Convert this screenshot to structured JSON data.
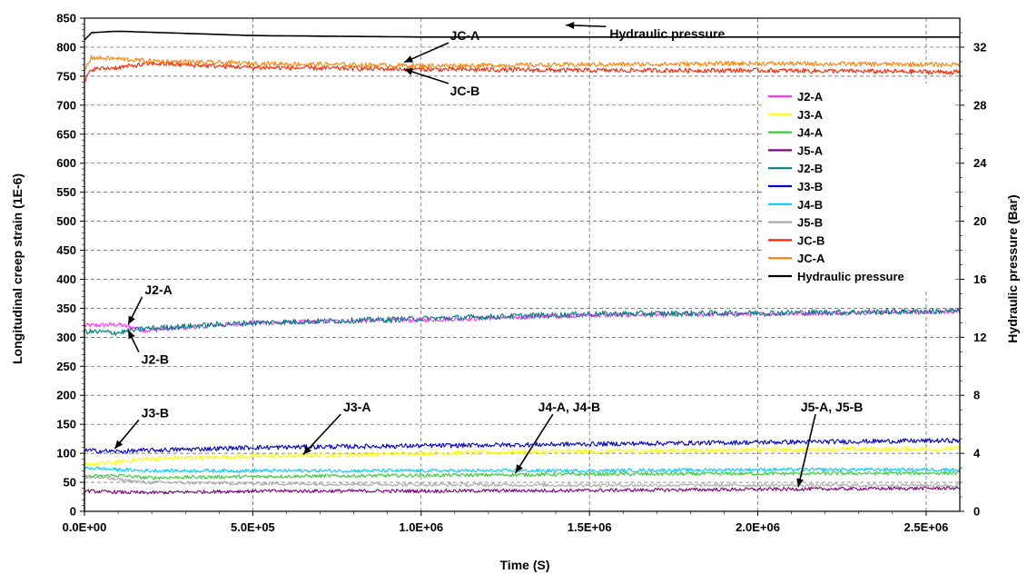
{
  "chart_data": {
    "type": "line",
    "xlabel": "Time (S)",
    "ylabel": "Longitudinal creep strain (1E-6)",
    "y2label": "Hydraulic pressure (Bar)",
    "xlim": [
      0,
      2600000
    ],
    "ylim": [
      0,
      850
    ],
    "y2lim": [
      0,
      34
    ],
    "x_ticks": [
      0,
      500000,
      1000000,
      1500000,
      2000000,
      2500000
    ],
    "x_tick_labels": [
      "0.0E+00",
      "5.0E+05",
      "1.0E+06",
      "1.5E+06",
      "2.0E+06",
      "2.5E+06"
    ],
    "y_ticks": [
      0,
      50,
      100,
      150,
      200,
      250,
      300,
      350,
      400,
      450,
      500,
      550,
      600,
      650,
      700,
      750,
      800,
      850
    ],
    "y2_ticks": [
      0,
      4,
      8,
      12,
      16,
      20,
      24,
      28,
      32
    ],
    "grid": true,
    "legend_position": "right",
    "series": [
      {
        "name": "J2-A",
        "color": "#ff33ff",
        "axis": "left",
        "noise": 4,
        "x": [
          0,
          100000,
          180000,
          500000,
          1000000,
          1500000,
          2000000,
          2600000
        ],
        "y": [
          320,
          322,
          312,
          325,
          330,
          338,
          340,
          345
        ]
      },
      {
        "name": "J3-A",
        "color": "#ffff00",
        "axis": "left",
        "noise": 4,
        "x": [
          0,
          100000,
          180000,
          500000,
          1000000,
          1500000,
          2000000,
          2600000
        ],
        "y": [
          80,
          85,
          90,
          95,
          100,
          103,
          106,
          108
        ]
      },
      {
        "name": "J4-A",
        "color": "#33cc33",
        "axis": "left",
        "noise": 3,
        "x": [
          0,
          100000,
          180000,
          500000,
          1000000,
          1500000,
          2000000,
          2600000
        ],
        "y": [
          60,
          62,
          58,
          60,
          62,
          64,
          65,
          66
        ]
      },
      {
        "name": "J5-A",
        "color": "#800080",
        "axis": "left",
        "noise": 3,
        "x": [
          0,
          100000,
          180000,
          500000,
          1000000,
          1500000,
          2000000,
          2600000
        ],
        "y": [
          35,
          33,
          32,
          35,
          35,
          36,
          38,
          40
        ]
      },
      {
        "name": "J2-B",
        "color": "#008080",
        "axis": "left",
        "noise": 5,
        "x": [
          0,
          100000,
          180000,
          500000,
          1000000,
          1500000,
          2000000,
          2600000
        ],
        "y": [
          310,
          308,
          315,
          325,
          332,
          340,
          342,
          345
        ]
      },
      {
        "name": "J3-B",
        "color": "#0000cc",
        "axis": "left",
        "noise": 4,
        "x": [
          0,
          100000,
          180000,
          500000,
          1000000,
          1500000,
          2000000,
          2600000
        ],
        "y": [
          105,
          103,
          105,
          110,
          113,
          116,
          119,
          122
        ]
      },
      {
        "name": "J4-B",
        "color": "#00ccff",
        "axis": "left",
        "noise": 3,
        "x": [
          0,
          100000,
          180000,
          500000,
          1000000,
          1500000,
          2000000,
          2600000
        ],
        "y": [
          75,
          72,
          70,
          70,
          70,
          70,
          72,
          72
        ]
      },
      {
        "name": "J5-B",
        "color": "#aaaaaa",
        "axis": "left",
        "noise": 3,
        "x": [
          0,
          100000,
          180000,
          500000,
          1000000,
          1500000,
          2000000,
          2600000
        ],
        "y": [
          60,
          55,
          50,
          48,
          46,
          45,
          45,
          45
        ]
      },
      {
        "name": "JC-B",
        "color": "#ff2200",
        "axis": "left",
        "noise": 4,
        "x": [
          0,
          20000,
          100000,
          200000,
          500000,
          1000000,
          1500000,
          2000000,
          2600000
        ],
        "y": [
          740,
          762,
          765,
          772,
          765,
          762,
          760,
          760,
          757
        ]
      },
      {
        "name": "JC-A",
        "color": "#ff8000",
        "axis": "left",
        "noise": 4,
        "x": [
          0,
          20000,
          100000,
          200000,
          500000,
          1000000,
          1500000,
          2000000,
          2600000
        ],
        "y": [
          760,
          782,
          780,
          776,
          772,
          768,
          770,
          772,
          770
        ]
      },
      {
        "name": "Hydraulic pressure",
        "color": "#000000",
        "axis": "right",
        "noise": 0,
        "x": [
          0,
          20000,
          100000,
          500000,
          1000000,
          1500000,
          2000000,
          2600000
        ],
        "y": [
          32.5,
          33.0,
          33.1,
          32.8,
          32.7,
          32.7,
          32.7,
          32.7
        ]
      }
    ],
    "annotations": [
      {
        "text": "JC-A",
        "x": 1400000,
        "y": 810
      },
      {
        "text": "JC-B",
        "x": 1400000,
        "y": 720
      },
      {
        "text": "Hydraulic pressure",
        "x": 1700000,
        "y": 820
      },
      {
        "text": "J2-A",
        "x": 200000,
        "y": 380
      },
      {
        "text": "J2-B",
        "x": 200000,
        "y": 270
      },
      {
        "text": "J3-B",
        "x": 200000,
        "y": 160
      },
      {
        "text": "J3-A",
        "x": 800000,
        "y": 170
      },
      {
        "text": "J4-A, J4-B",
        "x": 1450000,
        "y": 160
      },
      {
        "text": "J5-A, J5-B",
        "x": 2200000,
        "y": 160
      }
    ]
  }
}
